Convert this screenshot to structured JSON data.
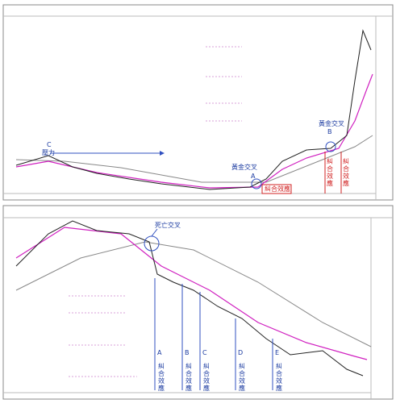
{
  "top_chart": {
    "c_label": "C",
    "resistance": "壓力",
    "golden_cross_a": {
      "title": "黃金交叉",
      "label": "A"
    },
    "golden_cross_b": {
      "title": "黃金交叉",
      "label": "B"
    },
    "converge_box": "糾合效應",
    "converge_1": "糾合效應",
    "converge_2": "糾合效應"
  },
  "bottom_chart": {
    "death_cross": "死亡交叉",
    "markers": [
      {
        "label": "A",
        "text": "糾合效應"
      },
      {
        "label": "B",
        "text": "糾合效應"
      },
      {
        "label": "C",
        "text": "糾合效應"
      },
      {
        "label": "D",
        "text": "糾合效應"
      },
      {
        "label": "E",
        "text": "糾合效應"
      }
    ]
  }
}
